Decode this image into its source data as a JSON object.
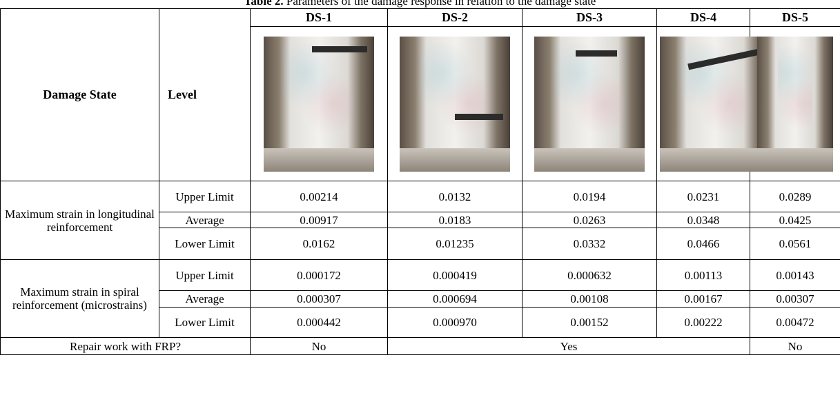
{
  "caption": {
    "label": "Table 2.",
    "text": " Parameters of the damage response in relation to the damage state"
  },
  "header": {
    "damage_state": "Damage State",
    "level": "Level",
    "states": [
      "DS-1",
      "DS-2",
      "DS-3",
      "DS-4",
      "DS-5"
    ]
  },
  "groups": [
    {
      "name": "Maximum strain in longitudinal reinforcement",
      "rows": [
        {
          "level": "Upper Limit",
          "values": [
            "0.00214",
            "0.0132",
            "0.0194",
            "0.0231",
            "0.0289"
          ]
        },
        {
          "level": "Average",
          "values": [
            "0.00917",
            "0.0183",
            "0.0263",
            "0.0348",
            "0.0425"
          ]
        },
        {
          "level": "Lower Limit",
          "values": [
            "0.0162",
            "0.01235",
            "0.0332",
            "0.0466",
            "0.0561"
          ]
        }
      ]
    },
    {
      "name": "Maximum strain in spiral reinforcement (microstrains)",
      "rows": [
        {
          "level": "Upper Limit",
          "values": [
            "0.000172",
            "0.000419",
            "0.000632",
            "0.00113",
            "0.00143"
          ]
        },
        {
          "level": "Average",
          "values": [
            "0.000307",
            "0.000694",
            "0.00108",
            "0.00167",
            "0.00307"
          ]
        },
        {
          "level": "Lower Limit",
          "values": [
            "0.000442",
            "0.000970",
            "0.00152",
            "0.00222",
            "0.00472"
          ]
        }
      ]
    }
  ],
  "repair": {
    "label": "Repair work with FRP?",
    "values": [
      "No",
      "Yes",
      "No"
    ]
  }
}
